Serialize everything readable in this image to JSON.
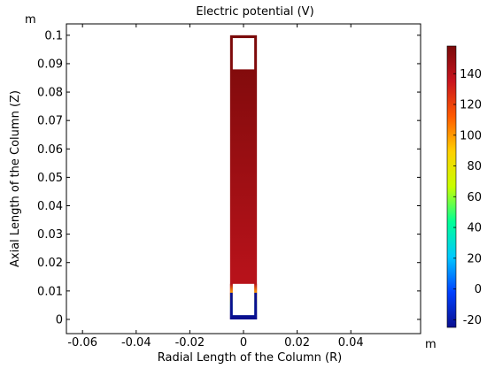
{
  "chart_data": {
    "type": "heatmap",
    "title": "Electric potential (V)",
    "xlabel": "Radial Length of the Column (R)",
    "ylabel": "Axial Length of the Column (Z)",
    "x_unit": "m",
    "y_unit": "m",
    "xlim": [
      -0.066,
      0.066
    ],
    "ylim": [
      -0.005,
      0.104
    ],
    "x_ticks": [
      -0.06,
      -0.04,
      -0.02,
      0,
      0.02,
      0.04
    ],
    "x_tick_labels": [
      "-0.06",
      "-0.04",
      "-0.02",
      "0",
      "0.02",
      "0.04"
    ],
    "y_ticks": [
      0,
      0.01,
      0.02,
      0.03,
      0.04,
      0.05,
      0.06,
      0.07,
      0.08,
      0.09,
      0.1
    ],
    "y_tick_labels": [
      "0",
      "0.01",
      "0.02",
      "0.03",
      "0.04",
      "0.05",
      "0.06",
      "0.07",
      "0.08",
      "0.09",
      "0.1"
    ],
    "grid": false,
    "domain": {
      "r_min": -0.005,
      "r_max": 0.005,
      "z_min": 0.0,
      "z_max": 0.1,
      "potential_top": 158,
      "potential_mid": 140,
      "potential_bottom": -25
    },
    "voids": [
      {
        "r_min": -0.004,
        "r_max": 0.004,
        "z_min": 0.088,
        "z_max": 0.099
      },
      {
        "r_min": -0.004,
        "r_max": 0.004,
        "z_min": 0.0015,
        "z_max": 0.0125
      }
    ],
    "colorbar": {
      "min": -25,
      "max": 158,
      "ticks": [
        -20,
        0,
        20,
        40,
        60,
        80,
        100,
        120,
        140
      ],
      "tick_labels": [
        "-20",
        "0",
        "20",
        "40",
        "60",
        "80",
        "100",
        "120",
        "140"
      ],
      "colormap": "rainbow",
      "colors": [
        "#0a0f8f",
        "#0040ff",
        "#00c8ff",
        "#00ff96",
        "#c8ff00",
        "#ffd000",
        "#ff5a00",
        "#c8141e",
        "#7a0a0a"
      ]
    }
  }
}
